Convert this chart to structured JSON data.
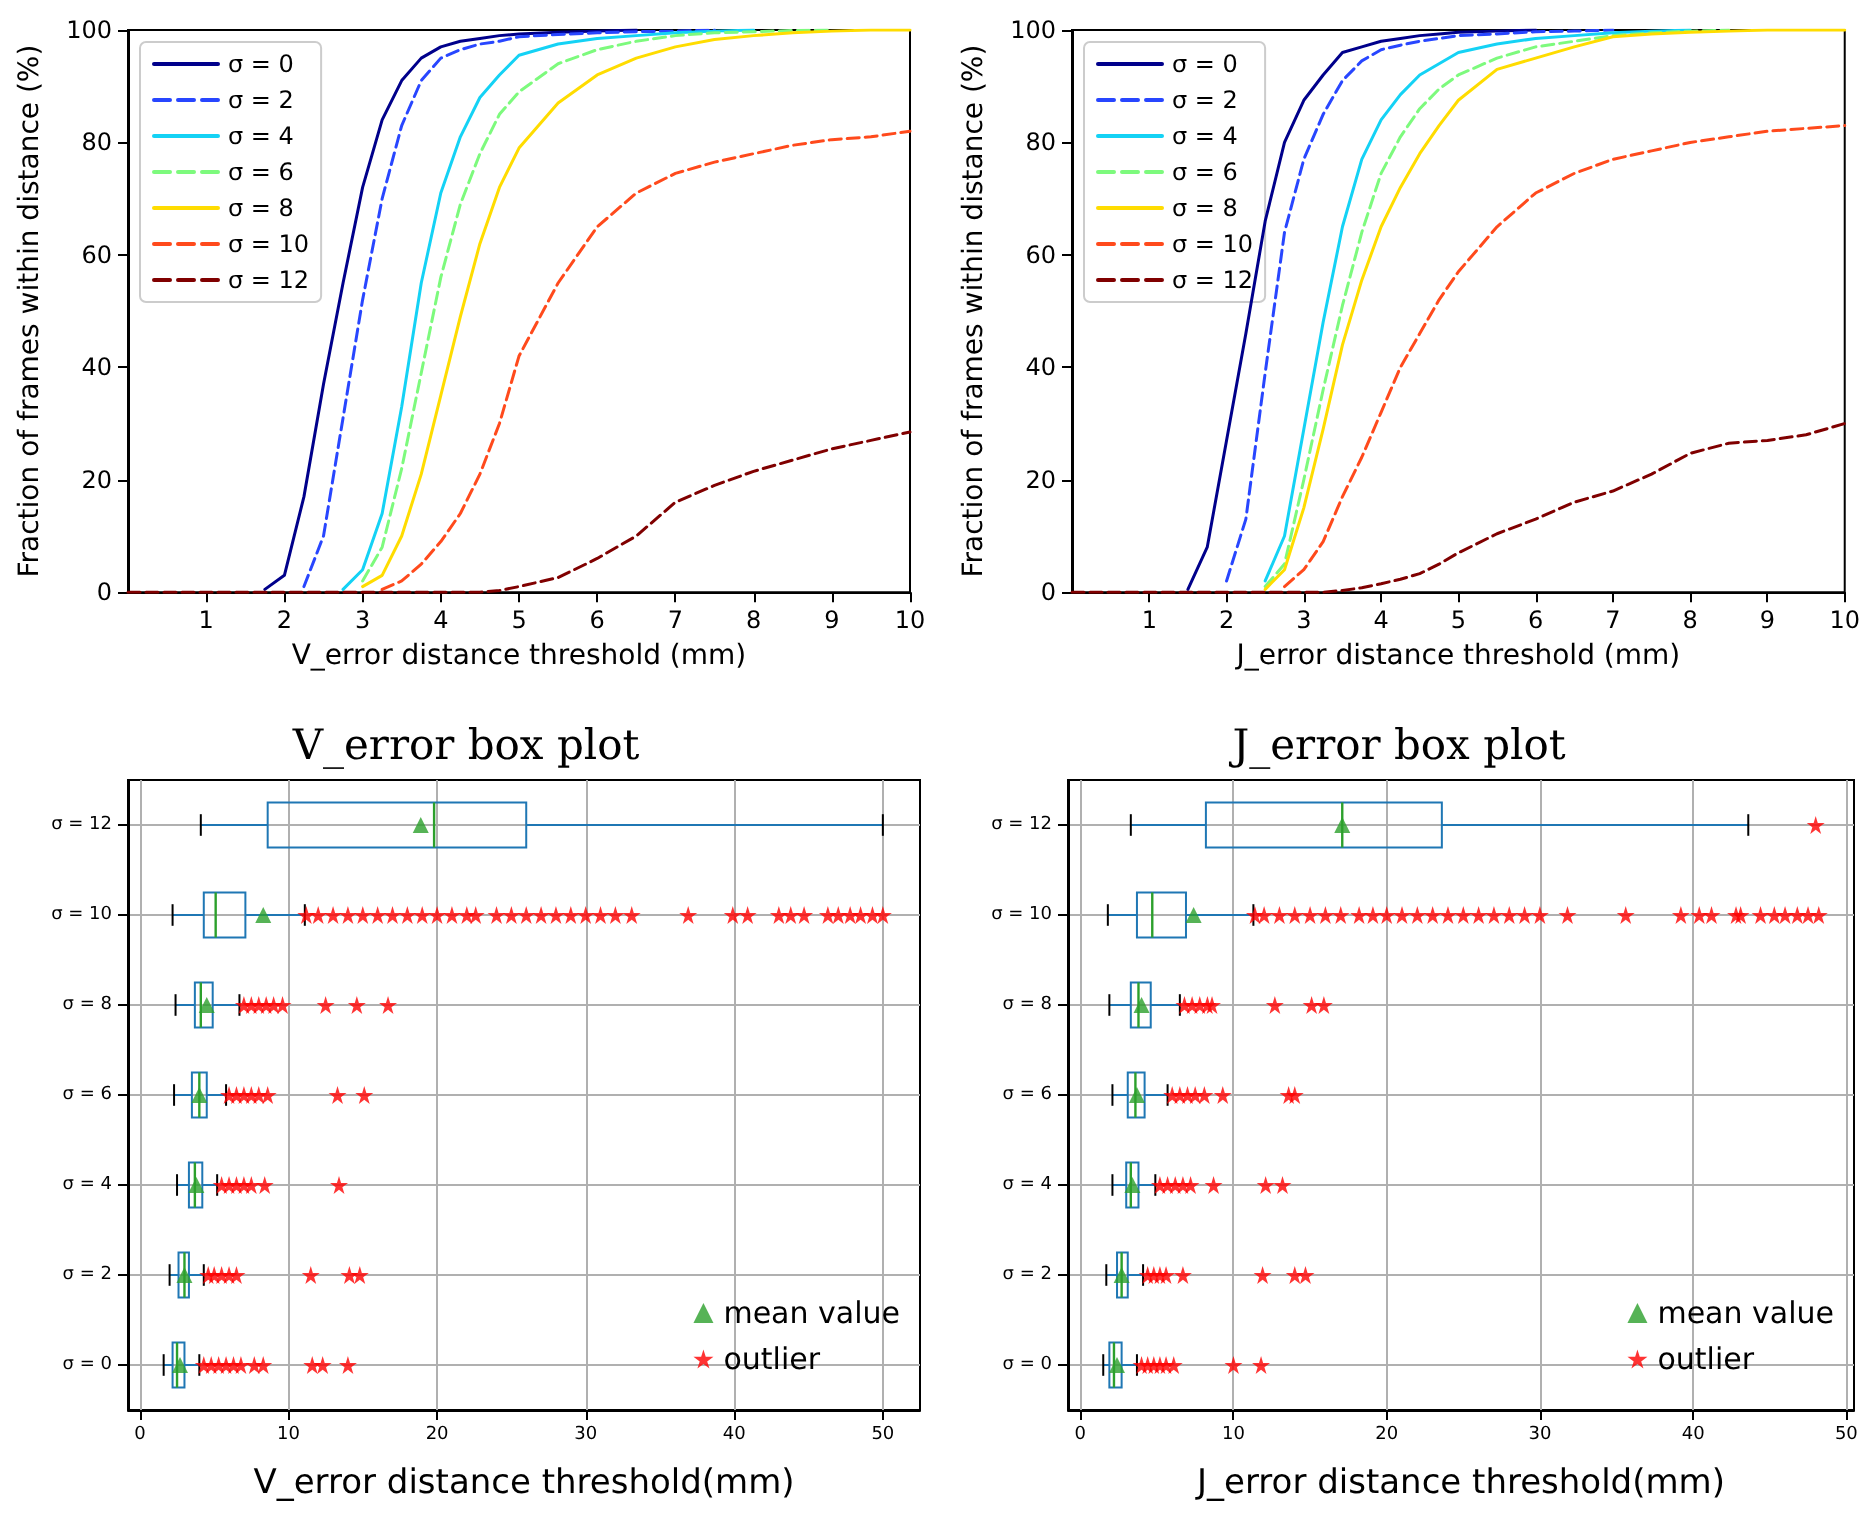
{
  "chart_data": [
    {
      "type": "line",
      "xlabel": "V_error distance threshold (mm)",
      "ylabel": "Fraction of frames within distance (%)",
      "xlim": [
        0,
        10
      ],
      "xticks": [
        1,
        2,
        3,
        4,
        5,
        6,
        7,
        8,
        9,
        10
      ],
      "ylim": [
        0,
        100
      ],
      "yticks": [
        0,
        20,
        40,
        60,
        80,
        100
      ],
      "legend": "top left",
      "marker": "none",
      "series": [
        {
          "name": "σ = 0",
          "color": "#00008b",
          "line_style": "solid",
          "x": [
            1.75,
            2,
            2.25,
            2.5,
            2.75,
            3,
            3.25,
            3.5,
            3.75,
            4,
            4.25,
            4.5,
            4.75,
            5,
            5.5,
            6,
            6.5
          ],
          "values": [
            0.5,
            3,
            17,
            37,
            55,
            72,
            84,
            91,
            95,
            97,
            98,
            98.5,
            99,
            99.3,
            99.6,
            99.8,
            100
          ]
        },
        {
          "name": "σ = 2",
          "color": "#2846ff",
          "line_style": "dashed",
          "x": [
            2.25,
            2.5,
            2.75,
            3,
            3.25,
            3.5,
            3.75,
            4,
            4.25,
            4.5,
            4.75,
            5,
            5.5,
            6,
            6.5,
            7,
            7.5
          ],
          "values": [
            1,
            10,
            31,
            52,
            70,
            83,
            91,
            95,
            96.5,
            97.5,
            98,
            98.8,
            99.2,
            99.5,
            99.7,
            99.8,
            100
          ]
        },
        {
          "name": "σ = 4",
          "color": "#14d2f5",
          "line_style": "solid",
          "x": [
            2.75,
            3,
            3.25,
            3.5,
            3.75,
            4,
            4.25,
            4.5,
            4.75,
            5,
            5.5,
            6,
            6.5,
            7,
            7.5,
            8
          ],
          "values": [
            0.5,
            4,
            14,
            33,
            55,
            71,
            81,
            88,
            92,
            95.5,
            97.5,
            98.5,
            99,
            99.5,
            99.8,
            100
          ]
        },
        {
          "name": "σ = 6",
          "color": "#7dfa7d",
          "line_style": "dashed",
          "x": [
            3,
            3.25,
            3.5,
            3.75,
            4,
            4.25,
            4.5,
            4.75,
            5,
            5.5,
            6,
            6.5,
            7,
            7.5,
            8,
            8.5,
            9
          ],
          "values": [
            2,
            8,
            22,
            39,
            56,
            69,
            78,
            85,
            89,
            94,
            96.5,
            98,
            99,
            99.5,
            99.7,
            99.9,
            100
          ]
        },
        {
          "name": "σ = 8",
          "color": "#ffdc00",
          "line_style": "solid",
          "x": [
            3,
            3.25,
            3.5,
            3.75,
            4,
            4.25,
            4.5,
            4.75,
            5,
            5.5,
            6,
            6.5,
            7,
            7.5,
            8,
            8.5,
            9,
            9.5,
            10
          ],
          "values": [
            1,
            3,
            10,
            21,
            35,
            49,
            62,
            72,
            79,
            87,
            92,
            95,
            97,
            98.3,
            99,
            99.5,
            99.8,
            100,
            100
          ]
        },
        {
          "name": "σ = 10",
          "color": "#ff4a1c",
          "line_style": "dashed",
          "x": [
            3.25,
            3.5,
            3.75,
            4,
            4.25,
            4.5,
            4.75,
            5,
            5.5,
            6,
            6.5,
            7,
            7.5,
            8,
            8.5,
            9,
            9.5,
            10
          ],
          "values": [
            0.5,
            2,
            5,
            9,
            14,
            21,
            30,
            42,
            55,
            65,
            71,
            74.5,
            76.5,
            78,
            79.5,
            80.5,
            81,
            82
          ]
        },
        {
          "name": "σ = 12",
          "color": "#800000",
          "line_style": "dashed",
          "x": [
            0,
            4.5,
            4.75,
            5,
            5.5,
            6,
            6.5,
            7,
            7.5,
            8,
            8.5,
            9,
            9.5,
            10
          ],
          "values": [
            0,
            0,
            0.3,
            1,
            2.6,
            6,
            10,
            16,
            19,
            21.5,
            23.5,
            25.5,
            27,
            28.5
          ]
        }
      ]
    },
    {
      "type": "line",
      "xlabel": "J_error distance threshold (mm)",
      "ylabel": "Fraction of frames within distance (%)",
      "xlim": [
        0,
        10
      ],
      "xticks": [
        1,
        2,
        3,
        4,
        5,
        6,
        7,
        8,
        9,
        10
      ],
      "ylim": [
        0,
        100
      ],
      "yticks": [
        0,
        20,
        40,
        60,
        80,
        100
      ],
      "legend": "top left",
      "marker": "none",
      "series": [
        {
          "name": "σ = 0",
          "color": "#00008b",
          "line_style": "solid",
          "x": [
            1.5,
            1.75,
            2,
            2.25,
            2.5,
            2.75,
            3,
            3.25,
            3.5,
            3.75,
            4,
            4.25,
            4.5,
            4.75,
            5,
            5.5,
            6
          ],
          "values": [
            0.5,
            8,
            27,
            46,
            66,
            80,
            87.5,
            92,
            96,
            97,
            98,
            98.5,
            99,
            99.3,
            99.6,
            99.8,
            100
          ]
        },
        {
          "name": "σ = 2",
          "color": "#2846ff",
          "line_style": "dashed",
          "x": [
            2,
            2.25,
            2.5,
            2.75,
            3,
            3.25,
            3.5,
            3.75,
            4,
            4.25,
            4.5,
            4.75,
            5,
            5.5,
            6,
            6.5,
            7
          ],
          "values": [
            2,
            13,
            39,
            64,
            77,
            85,
            91,
            94.5,
            96.5,
            97.3,
            98,
            98.5,
            99,
            99.3,
            99.7,
            99.8,
            100
          ]
        },
        {
          "name": "σ = 4",
          "color": "#14d2f5",
          "line_style": "solid",
          "x": [
            2.5,
            2.75,
            3,
            3.25,
            3.5,
            3.75,
            4,
            4.25,
            4.5,
            4.75,
            5,
            5.5,
            6,
            6.5,
            7,
            7.5,
            8
          ],
          "values": [
            2,
            10,
            29,
            48,
            65,
            77,
            84,
            88.5,
            92,
            94,
            96,
            97.5,
            98.5,
            99,
            99.5,
            99.8,
            100
          ]
        },
        {
          "name": "σ = 6",
          "color": "#7dfa7d",
          "line_style": "dashed",
          "x": [
            2.5,
            2.75,
            3,
            3.25,
            3.5,
            3.75,
            4,
            4.25,
            4.5,
            4.75,
            5,
            5.5,
            6,
            6.5,
            7,
            7.5,
            8,
            8.5
          ],
          "values": [
            1,
            5,
            20,
            36,
            51,
            64,
            74.5,
            81,
            86,
            89.5,
            92,
            95,
            97,
            98,
            99,
            99.5,
            99.8,
            100
          ]
        },
        {
          "name": "σ = 8",
          "color": "#ffdc00",
          "line_style": "solid",
          "x": [
            2.5,
            2.75,
            3,
            3.25,
            3.5,
            3.75,
            4,
            4.25,
            4.5,
            4.75,
            5,
            5.5,
            6,
            6.5,
            7,
            7.5,
            8,
            8.5,
            9,
            9.5,
            10
          ],
          "values": [
            0.5,
            4,
            15,
            29,
            44,
            55.5,
            65,
            72,
            78,
            83,
            87.5,
            93,
            95,
            97,
            98.8,
            99.3,
            99.6,
            99.8,
            100,
            100,
            100
          ]
        },
        {
          "name": "σ = 10",
          "color": "#ff4a1c",
          "line_style": "dashed",
          "x": [
            2.75,
            3,
            3.25,
            3.5,
            3.75,
            4,
            4.25,
            4.5,
            4.75,
            5,
            5.5,
            6,
            6.5,
            7,
            7.5,
            8,
            8.5,
            9,
            9.5,
            10
          ],
          "values": [
            1,
            4,
            9,
            17,
            24,
            32,
            40,
            46,
            52,
            57,
            65,
            71,
            74.5,
            77,
            78.5,
            80,
            81,
            82,
            82.5,
            83
          ]
        },
        {
          "name": "σ = 12",
          "color": "#800000",
          "line_style": "dashed",
          "x": [
            0,
            3.25,
            3.5,
            3.75,
            4,
            4.25,
            4.5,
            4.75,
            5,
            5.5,
            6,
            6.5,
            7,
            7.5,
            8,
            8.5,
            9,
            9.5,
            10
          ],
          "values": [
            0,
            0,
            0.3,
            0.8,
            1.5,
            2.3,
            3.3,
            5,
            7,
            10.4,
            13,
            16,
            18,
            21,
            24.7,
            26.5,
            27,
            28,
            30
          ]
        }
      ]
    },
    {
      "type": "box",
      "orientation": "horizontal",
      "title": "V_error box plot",
      "xlabel": "V_error distance threshold(mm)",
      "categories": [
        "σ = 12",
        "σ = 10",
        "σ = 8",
        "σ = 6",
        "σ = 4",
        "σ = 2",
        "σ = 0"
      ],
      "xlim": [
        -0.8,
        52.5
      ],
      "xticks": [
        0,
        10,
        20,
        30,
        40,
        50
      ],
      "grid": true,
      "legend": "bottom right",
      "series": [
        {
          "type": "box",
          "color": "#1f77b4",
          "boxes": [
            {
              "low": 4.1,
              "q1": 8.6,
              "median": 19.8,
              "q3": 26,
              "high": 50
            },
            {
              "low": 2.2,
              "q1": 4.3,
              "median": 5.1,
              "q3": 7.1,
              "high": 11.1
            },
            {
              "low": 2.4,
              "q1": 3.7,
              "median": 4.1,
              "q3": 4.9,
              "high": 6.7
            },
            {
              "low": 2.3,
              "q1": 3.5,
              "median": 4,
              "q3": 4.5,
              "high": 5.8
            },
            {
              "low": 2.5,
              "q1": 3.3,
              "median": 3.7,
              "q3": 4.2,
              "high": 5.2
            },
            {
              "low": 2,
              "q1": 2.6,
              "median": 3,
              "q3": 3.3,
              "high": 4.3
            },
            {
              "low": 1.6,
              "q1": 2.2,
              "median": 2.5,
              "q3": 3,
              "high": 4
            }
          ]
        },
        {
          "type": "scatter",
          "name": "mean value",
          "color": "#2ca02c",
          "marker": "triangle",
          "values": [
            18.9,
            8.3,
            4.5,
            4,
            3.8,
            3,
            2.7
          ]
        },
        {
          "type": "scatter",
          "name": "outlier",
          "color": "#ff0000",
          "marker": "star",
          "x": [
            "σ = 10",
            "σ = 10",
            "σ = 10",
            "σ = 10",
            "σ = 10",
            "σ = 10",
            "σ = 10",
            "σ = 10",
            "σ = 10",
            "σ = 10",
            "σ = 10",
            "σ = 10",
            "σ = 10",
            "σ = 10",
            "σ = 10",
            "σ = 10",
            "σ = 10",
            "σ = 10",
            "σ = 10",
            "σ = 10",
            "σ = 10",
            "σ = 10",
            "σ = 10",
            "σ = 10",
            "σ = 10",
            "σ = 10",
            "σ = 10",
            "σ = 10",
            "σ = 10",
            "σ = 10",
            "σ = 10",
            "σ = 10",
            "σ = 10",
            "σ = 10",
            "σ = 10",
            "σ = 8",
            "σ = 8",
            "σ = 8",
            "σ = 8",
            "σ = 8",
            "σ = 8",
            "σ = 8",
            "σ = 8",
            "σ = 8",
            "σ = 6",
            "σ = 6",
            "σ = 6",
            "σ = 6",
            "σ = 6",
            "σ = 6",
            "σ = 6",
            "σ = 6",
            "σ = 4",
            "σ = 4",
            "σ = 4",
            "σ = 4",
            "σ = 4",
            "σ = 4",
            "σ = 4",
            "σ = 2",
            "σ = 2",
            "σ = 2",
            "σ = 2",
            "σ = 2",
            "σ = 2",
            "σ = 2",
            "σ = 2",
            "σ = 0",
            "σ = 0",
            "σ = 0",
            "σ = 0",
            "σ = 0",
            "σ = 0",
            "σ = 0",
            "σ = 0",
            "σ = 0",
            "σ = 0",
            "σ = 0"
          ],
          "values": [
            11.2,
            12,
            13,
            14,
            15,
            16,
            17,
            18,
            19,
            20,
            21,
            22,
            22.6,
            24,
            25,
            26,
            27,
            28,
            29,
            30,
            31,
            32,
            33.1,
            36.9,
            39.9,
            40.9,
            43,
            43.8,
            44.7,
            46.3,
            47,
            47.8,
            48.5,
            49.3,
            50,
            7,
            7.5,
            8,
            8.5,
            9,
            9.6,
            12.5,
            14.6,
            16.7,
            6,
            6.5,
            7,
            7.5,
            8,
            8.6,
            13.3,
            15.1,
            5.5,
            6,
            6.5,
            7,
            7.5,
            8.4,
            13.4,
            4.6,
            5,
            5.5,
            6,
            6.5,
            11.5,
            14.1,
            14.8,
            4.3,
            4.8,
            5.3,
            5.8,
            6.3,
            6.8,
            7.7,
            8.3,
            11.6,
            12.3,
            14
          ]
        }
      ]
    },
    {
      "type": "box",
      "orientation": "horizontal",
      "title": "J_error box plot",
      "xlabel": "J_error distance threshold(mm)",
      "categories": [
        "σ = 12",
        "σ = 10",
        "σ = 8",
        "σ = 6",
        "σ = 4",
        "σ = 2",
        "σ = 0"
      ],
      "xlim": [
        -0.8,
        50.5
      ],
      "xticks": [
        0,
        10,
        20,
        30,
        40,
        50
      ],
      "grid": true,
      "legend": "bottom right",
      "series": [
        {
          "type": "box",
          "color": "#1f77b4",
          "boxes": [
            {
              "low": 3.3,
              "q1": 8.2,
              "median": 17.1,
              "q3": 23.6,
              "high": 43.6
            },
            {
              "low": 1.8,
              "q1": 3.7,
              "median": 4.7,
              "q3": 6.9,
              "high": 11.3
            },
            {
              "low": 1.9,
              "q1": 3.3,
              "median": 3.8,
              "q3": 4.6,
              "high": 6.5
            },
            {
              "low": 2.1,
              "q1": 3.1,
              "median": 3.6,
              "q3": 4.2,
              "high": 5.7
            },
            {
              "low": 2.1,
              "q1": 3,
              "median": 3.3,
              "q3": 3.8,
              "high": 4.9
            },
            {
              "low": 1.7,
              "q1": 2.4,
              "median": 2.7,
              "q3": 3.1,
              "high": 4.1
            },
            {
              "low": 1.5,
              "q1": 1.9,
              "median": 2.2,
              "q3": 2.7,
              "high": 3.7
            }
          ]
        },
        {
          "type": "scatter",
          "name": "mean value",
          "color": "#2ca02c",
          "marker": "triangle",
          "values": [
            17.1,
            7.4,
            4,
            3.7,
            3.4,
            2.7,
            2.4
          ]
        },
        {
          "type": "scatter",
          "name": "outlier",
          "color": "#ff0000",
          "marker": "star",
          "x": [
            "σ = 12",
            "σ = 10",
            "σ = 10",
            "σ = 10",
            "σ = 10",
            "σ = 10",
            "σ = 10",
            "σ = 10",
            "σ = 10",
            "σ = 10",
            "σ = 10",
            "σ = 10",
            "σ = 10",
            "σ = 10",
            "σ = 10",
            "σ = 10",
            "σ = 10",
            "σ = 10",
            "σ = 10",
            "σ = 10",
            "σ = 10",
            "σ = 10",
            "σ = 10",
            "σ = 10",
            "σ = 10",
            "σ = 10",
            "σ = 10",
            "σ = 10",
            "σ = 10",
            "σ = 10",
            "σ = 10",
            "σ = 10",
            "σ = 10",
            "σ = 10",
            "σ = 8",
            "σ = 8",
            "σ = 8",
            "σ = 8",
            "σ = 8",
            "σ = 8",
            "σ = 8",
            "σ = 8",
            "σ = 6",
            "σ = 6",
            "σ = 6",
            "σ = 6",
            "σ = 6",
            "σ = 6",
            "σ = 6",
            "σ = 6",
            "σ = 4",
            "σ = 4",
            "σ = 4",
            "σ = 4",
            "σ = 4",
            "σ = 4",
            "σ = 4",
            "σ = 4",
            "σ = 2",
            "σ = 2",
            "σ = 2",
            "σ = 2",
            "σ = 2",
            "σ = 2",
            "σ = 2",
            "σ = 2",
            "σ = 0",
            "σ = 0",
            "σ = 0",
            "σ = 0",
            "σ = 0",
            "σ = 0",
            "σ = 0",
            "σ = 0"
          ],
          "values": [
            48,
            11.4,
            12,
            13,
            14,
            15,
            16,
            17,
            18.2,
            19.1,
            20,
            21,
            22,
            23,
            24,
            25,
            26,
            27,
            28,
            29,
            30,
            31.8,
            35.6,
            39.2,
            40.4,
            41.2,
            42.8,
            43.1,
            44.4,
            45.3,
            46,
            46.8,
            47.5,
            48.2,
            6.8,
            7.3,
            7.8,
            8.3,
            8.6,
            12.7,
            15.1,
            15.9,
            6,
            6.5,
            7,
            7.5,
            8.1,
            9.3,
            13.6,
            14,
            5.2,
            5.7,
            6.2,
            6.7,
            7.2,
            8.7,
            12.1,
            13.2,
            4.4,
            4.8,
            5.2,
            5.6,
            6.7,
            11.9,
            14,
            14.7,
            4,
            4.4,
            4.8,
            5.2,
            5.6,
            6.1,
            10,
            11.8
          ]
        }
      ]
    }
  ]
}
